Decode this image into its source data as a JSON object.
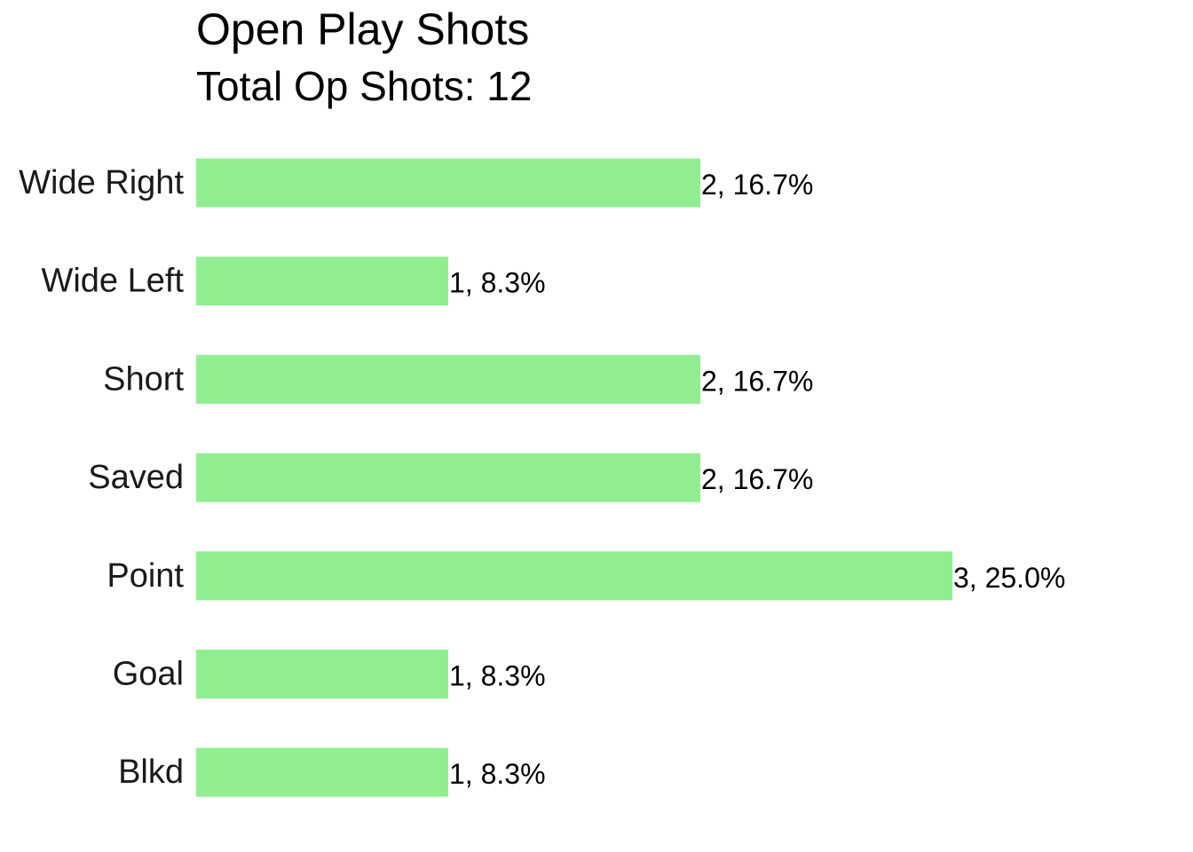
{
  "chart_data": {
    "type": "bar",
    "orientation": "horizontal",
    "title": "Open Play Shots",
    "subtitle": "Total Op Shots: 12",
    "categories": [
      "Wide Right",
      "Wide Left",
      "Short",
      "Saved",
      "Point",
      "Goal",
      "Blkd"
    ],
    "values": [
      2,
      1,
      2,
      2,
      3,
      1,
      1
    ],
    "data_labels": [
      "2, 16.7%",
      "1, 8.3%",
      "2, 16.7%",
      "2, 16.7%",
      "3, 25.0%",
      "1, 8.3%",
      "1, 8.3%"
    ],
    "xlim": [
      0,
      3
    ],
    "grid": false,
    "legend": "none",
    "bar_color": "#90EE90"
  }
}
